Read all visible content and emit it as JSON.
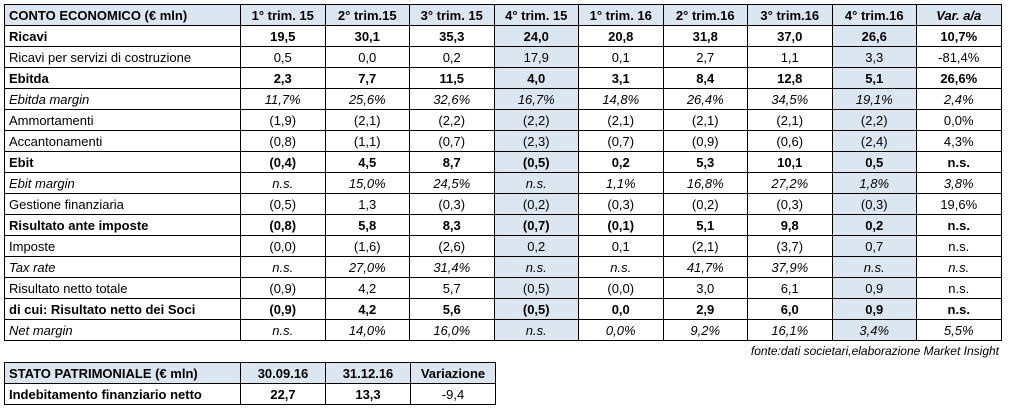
{
  "income_table": {
    "header": [
      "CONTO ECONOMICO (€ mln)",
      "1° trim. 15",
      "2° trim.15",
      "3° trim. 15",
      "4° trim. 15",
      "1° trim. 16",
      "2° trim.16",
      "3° trim.16",
      "4° trim.16",
      "Var. a/a"
    ],
    "rows": [
      [
        "Ricavi",
        "19,5",
        "30,1",
        "35,3",
        "24,0",
        "20,8",
        "31,8",
        "37,0",
        "26,6",
        "10,7%"
      ],
      [
        "Ricavi per servizi di costruzione",
        "0,5",
        "0,0",
        "0,2",
        "17,9",
        "0,1",
        "2,7",
        "1,1",
        "3,3",
        "-81,4%"
      ],
      [
        "Ebitda",
        "2,3",
        "7,7",
        "11,5",
        "4,0",
        "3,1",
        "8,4",
        "12,8",
        "5,1",
        "26,6%"
      ],
      [
        "Ebitda margin",
        "11,7%",
        "25,6%",
        "32,6%",
        "16,7%",
        "14,8%",
        "26,4%",
        "34,5%",
        "19,1%",
        "2,4%"
      ],
      [
        "Ammortamenti",
        "(1,9)",
        "(2,1)",
        "(2,2)",
        "(2,2)",
        "(2,1)",
        "(2,1)",
        "(2,1)",
        "(2,2)",
        "0,0%"
      ],
      [
        "Accantonamenti",
        "(0,8)",
        "(1,1)",
        "(0,7)",
        "(2,3)",
        "(0,7)",
        "(0,9)",
        "(0,6)",
        "(2,4)",
        "4,3%"
      ],
      [
        "Ebit",
        "(0,4)",
        "4,5",
        "8,7",
        "(0,5)",
        "0,2",
        "5,3",
        "10,1",
        "0,5",
        "n.s."
      ],
      [
        "Ebit margin",
        "n.s.",
        "15,0%",
        "24,5%",
        "n.s.",
        "1,1%",
        "16,8%",
        "27,2%",
        "1,8%",
        "3,8%"
      ],
      [
        "Gestione finanziaria",
        "(0,5)",
        "1,3",
        "(0,3)",
        "(0,2)",
        "(0,3)",
        "(0,2)",
        "(0,3)",
        "(0,3)",
        "19,6%"
      ],
      [
        "Risultato ante imposte",
        "(0,8)",
        "5,8",
        "8,3",
        "(0,7)",
        "(0,1)",
        "5,1",
        "9,8",
        "0,2",
        "n.s."
      ],
      [
        "Imposte",
        "(0,0)",
        "(1,6)",
        "(2,6)",
        "0,2",
        "0,1",
        "(2,1)",
        "(3,7)",
        "0,7",
        "n.s."
      ],
      [
        "Tax rate",
        "n.s.",
        "27,0%",
        "31,4%",
        "n.s.",
        "n.s.",
        "41,7%",
        "37,9%",
        "n.s.",
        "n.s."
      ],
      [
        "Risultato netto totale",
        "(0,9)",
        "4,2",
        "5,7",
        "(0,5)",
        "(0,0)",
        "3,0",
        "6,1",
        "0,9",
        "n.s."
      ],
      [
        "di cui: Risultato netto dei Soci",
        "(0,9)",
        "4,2",
        "5,6",
        "(0,5)",
        "0,0",
        "2,9",
        "6,0",
        "0,9",
        "n.s."
      ],
      [
        "Net margin",
        "n.s.",
        "14,0%",
        "16,0%",
        "n.s.",
        "0,0%",
        "9,2%",
        "16,1%",
        "3,4%",
        "5,5%"
      ]
    ]
  },
  "source_note": "fonte:dati societari,elaborazione Market Insight",
  "balance_table": {
    "header": [
      "STATO PATRIMONIALE (€ mln)",
      "30.09.16",
      "31.12.16",
      "Variazione"
    ],
    "rows": [
      [
        "Indebitamento finanziario netto",
        "22,7",
        "13,3",
        "-9,4"
      ]
    ]
  }
}
